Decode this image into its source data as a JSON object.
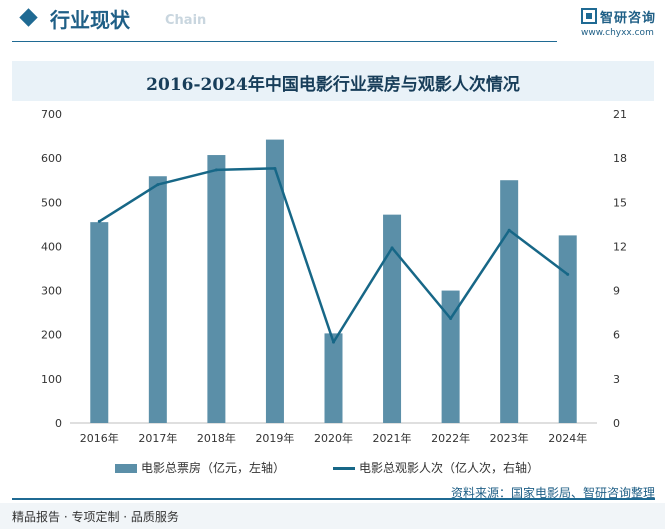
{
  "header": {
    "title": "行业现状",
    "subtitle": "Chain",
    "logo_name": "智研咨询",
    "logo_url": "www.chyxx.com"
  },
  "chart_data": {
    "type": "bar",
    "title": "2016-2024年中国电影行业票房与观影人次情况",
    "categories": [
      "2016年",
      "2017年",
      "2018年",
      "2019年",
      "2020年",
      "2021年",
      "2022年",
      "2023年",
      "2024年"
    ],
    "series": [
      {
        "name": "电影总票房（亿元，左轴）",
        "type": "bar",
        "axis": "left",
        "color": "#5b8fa8",
        "values": [
          455,
          559,
          607,
          642,
          203,
          472,
          300,
          550,
          425
        ]
      },
      {
        "name": "电影总观影人次（亿人次，右轴）",
        "type": "line",
        "axis": "right",
        "color": "#176787",
        "values": [
          13.7,
          16.2,
          17.2,
          17.3,
          5.5,
          11.9,
          7.1,
          13.1,
          10.1
        ]
      }
    ],
    "y_left": {
      "min": 0,
      "max": 700,
      "ticks": [
        0,
        100,
        200,
        300,
        400,
        500,
        600,
        700
      ]
    },
    "y_right": {
      "min": 0,
      "max": 21,
      "ticks": [
        0,
        3,
        6,
        9,
        12,
        15,
        18,
        21
      ]
    },
    "grid": false,
    "legend_position": "bottom"
  },
  "footer": {
    "source": "资料来源：国家电影局、智研咨询整理",
    "tagline": "精品报告 · 专项定制 · 品质服务"
  }
}
